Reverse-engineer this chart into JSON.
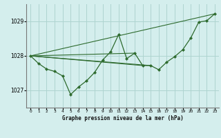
{
  "bg_color": "#d4eeed",
  "grid_color": "#aed4d0",
  "line_color": "#2d6a2d",
  "marker_color": "#2d6a2d",
  "xlabel": "Graphe pression niveau de la mer (hPa)",
  "ylim": [
    1026.5,
    1029.5
  ],
  "xlim": [
    -0.5,
    23.5
  ],
  "yticks": [
    1027,
    1028,
    1029
  ],
  "xticks": [
    0,
    1,
    2,
    3,
    4,
    5,
    6,
    7,
    8,
    9,
    10,
    11,
    12,
    13,
    14,
    15,
    16,
    17,
    18,
    19,
    20,
    21,
    22,
    23
  ],
  "series": [
    [
      0,
      1028.0
    ],
    [
      1,
      1027.78
    ],
    [
      2,
      1027.62
    ],
    [
      3,
      1027.55
    ],
    [
      4,
      1027.42
    ],
    [
      5,
      1026.88
    ],
    [
      6,
      1027.1
    ],
    [
      7,
      1027.28
    ],
    [
      8,
      1027.52
    ],
    [
      9,
      1027.88
    ],
    [
      10,
      1028.12
    ],
    [
      11,
      1028.62
    ],
    [
      12,
      1027.92
    ],
    [
      13,
      1028.08
    ],
    [
      14,
      1027.72
    ],
    [
      15,
      1027.72
    ],
    [
      16,
      1027.6
    ],
    [
      17,
      1027.82
    ],
    [
      18,
      1027.98
    ],
    [
      19,
      1028.18
    ],
    [
      20,
      1028.52
    ],
    [
      21,
      1028.98
    ],
    [
      22,
      1029.02
    ],
    [
      23,
      1029.22
    ]
  ],
  "extra_lines": [
    [
      [
        0,
        1028.0
      ],
      [
        13,
        1028.08
      ]
    ],
    [
      [
        0,
        1028.0
      ],
      [
        14,
        1027.72
      ]
    ],
    [
      [
        0,
        1028.0
      ],
      [
        15,
        1027.72
      ]
    ],
    [
      [
        0,
        1028.0
      ],
      [
        23,
        1029.22
      ]
    ]
  ]
}
